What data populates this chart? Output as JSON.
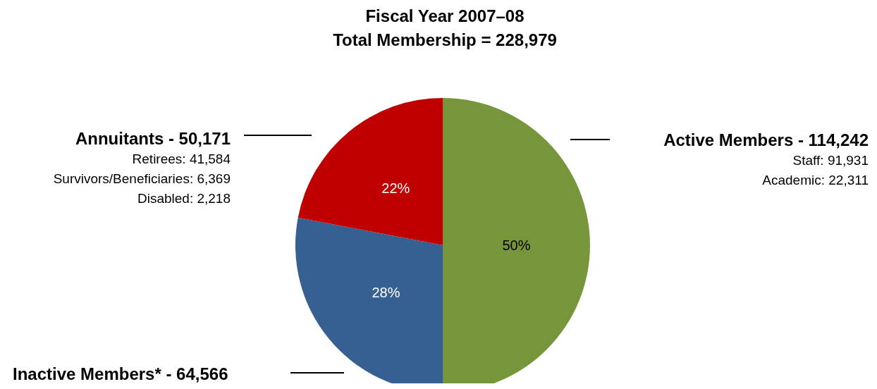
{
  "chart_data": {
    "type": "pie",
    "title": "Fiscal Year 2007–08\nTotal Membership = 228,979",
    "categories": [
      "Active Members - 114,242",
      "Inactive Members* - 64,566",
      "Annuitants - 50,171"
    ],
    "values": [
      50,
      28,
      22
    ],
    "colors": [
      "#77963c",
      "#376092",
      "#c00000"
    ],
    "value_labels": [
      "50%",
      "28%",
      "22%"
    ],
    "annotations": [
      "Staff: 91,931",
      "Academic: 22,311",
      "Retirees: 41,584",
      "Survivors/Beneficiaries: 6,369",
      "Disabled: 2,218"
    ]
  }
}
